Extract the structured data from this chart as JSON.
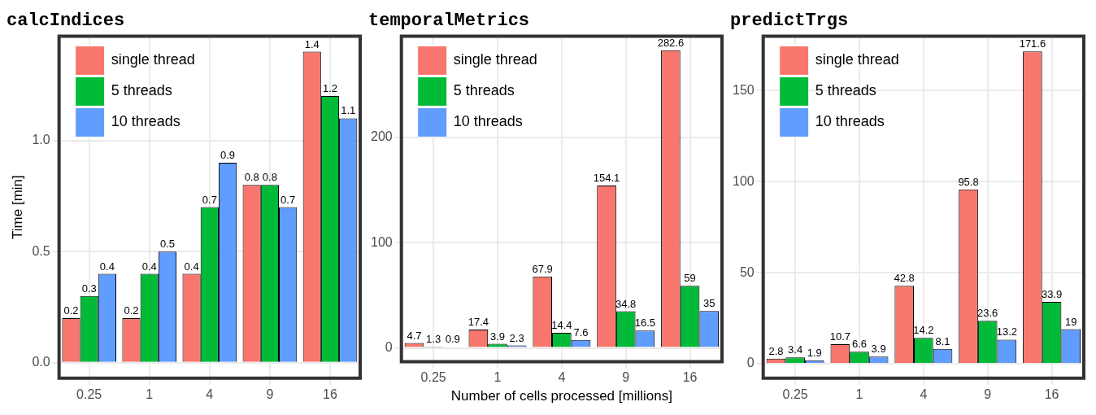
{
  "chart_data": [
    {
      "type": "bar",
      "title": "calcIndices",
      "ylabel": "Time [min]",
      "categories": [
        "0.25",
        "1",
        "4",
        "9",
        "16"
      ],
      "series": [
        {
          "name": "single thread",
          "color": "#f8766d",
          "values": [
            0.2,
            0.2,
            0.4,
            0.8,
            1.4
          ]
        },
        {
          "name": "5 threads",
          "color": "#00ba38",
          "values": [
            0.3,
            0.4,
            0.7,
            0.8,
            1.2
          ]
        },
        {
          "name": "10 threads",
          "color": "#619cff",
          "values": [
            0.4,
            0.5,
            0.9,
            0.7,
            1.1
          ]
        }
      ],
      "ylim": [
        -0.07,
        1.47
      ],
      "yticks": [
        {
          "value": 0,
          "label": "0.0"
        },
        {
          "value": 0.5,
          "label": "0.5"
        },
        {
          "value": 1,
          "label": "1.0"
        }
      ],
      "grid": true,
      "legend": "top left",
      "data_labels": true
    },
    {
      "type": "bar",
      "title": "temporalMetrics",
      "xlabel": "Number of cells processed [millions]",
      "categories": [
        "0.25",
        "1",
        "4",
        "9",
        "16"
      ],
      "series": [
        {
          "name": "single thread",
          "color": "#f8766d",
          "values": [
            4.7,
            17.4,
            67.9,
            154.1,
            282.6
          ]
        },
        {
          "name": "5 threads",
          "color": "#00ba38",
          "values": [
            1.3,
            3.9,
            14.4,
            34.8,
            59
          ]
        },
        {
          "name": "10 threads",
          "color": "#619cff",
          "values": [
            0.9,
            2.3,
            7.6,
            16.5,
            35
          ]
        }
      ],
      "ylim": [
        -13,
        296
      ],
      "yticks": [
        0,
        100,
        200
      ],
      "grid": true,
      "legend": "top left",
      "data_labels": true
    },
    {
      "type": "bar",
      "title": "predictTrgs",
      "categories": [
        "0.25",
        "1",
        "4",
        "9",
        "16"
      ],
      "series": [
        {
          "name": "single thread",
          "color": "#f8766d",
          "values": [
            2.8,
            10.7,
            42.8,
            95.8,
            171.6
          ]
        },
        {
          "name": "5 threads",
          "color": "#00ba38",
          "values": [
            3.4,
            6.6,
            14.2,
            23.6,
            33.9
          ]
        },
        {
          "name": "10 threads",
          "color": "#619cff",
          "values": [
            1.9,
            3.9,
            8.1,
            13.2,
            19
          ]
        }
      ],
      "ylim": [
        -8,
        180
      ],
      "yticks": [
        0,
        50,
        100,
        150
      ],
      "grid": true,
      "legend": "top left",
      "data_labels": true
    }
  ]
}
